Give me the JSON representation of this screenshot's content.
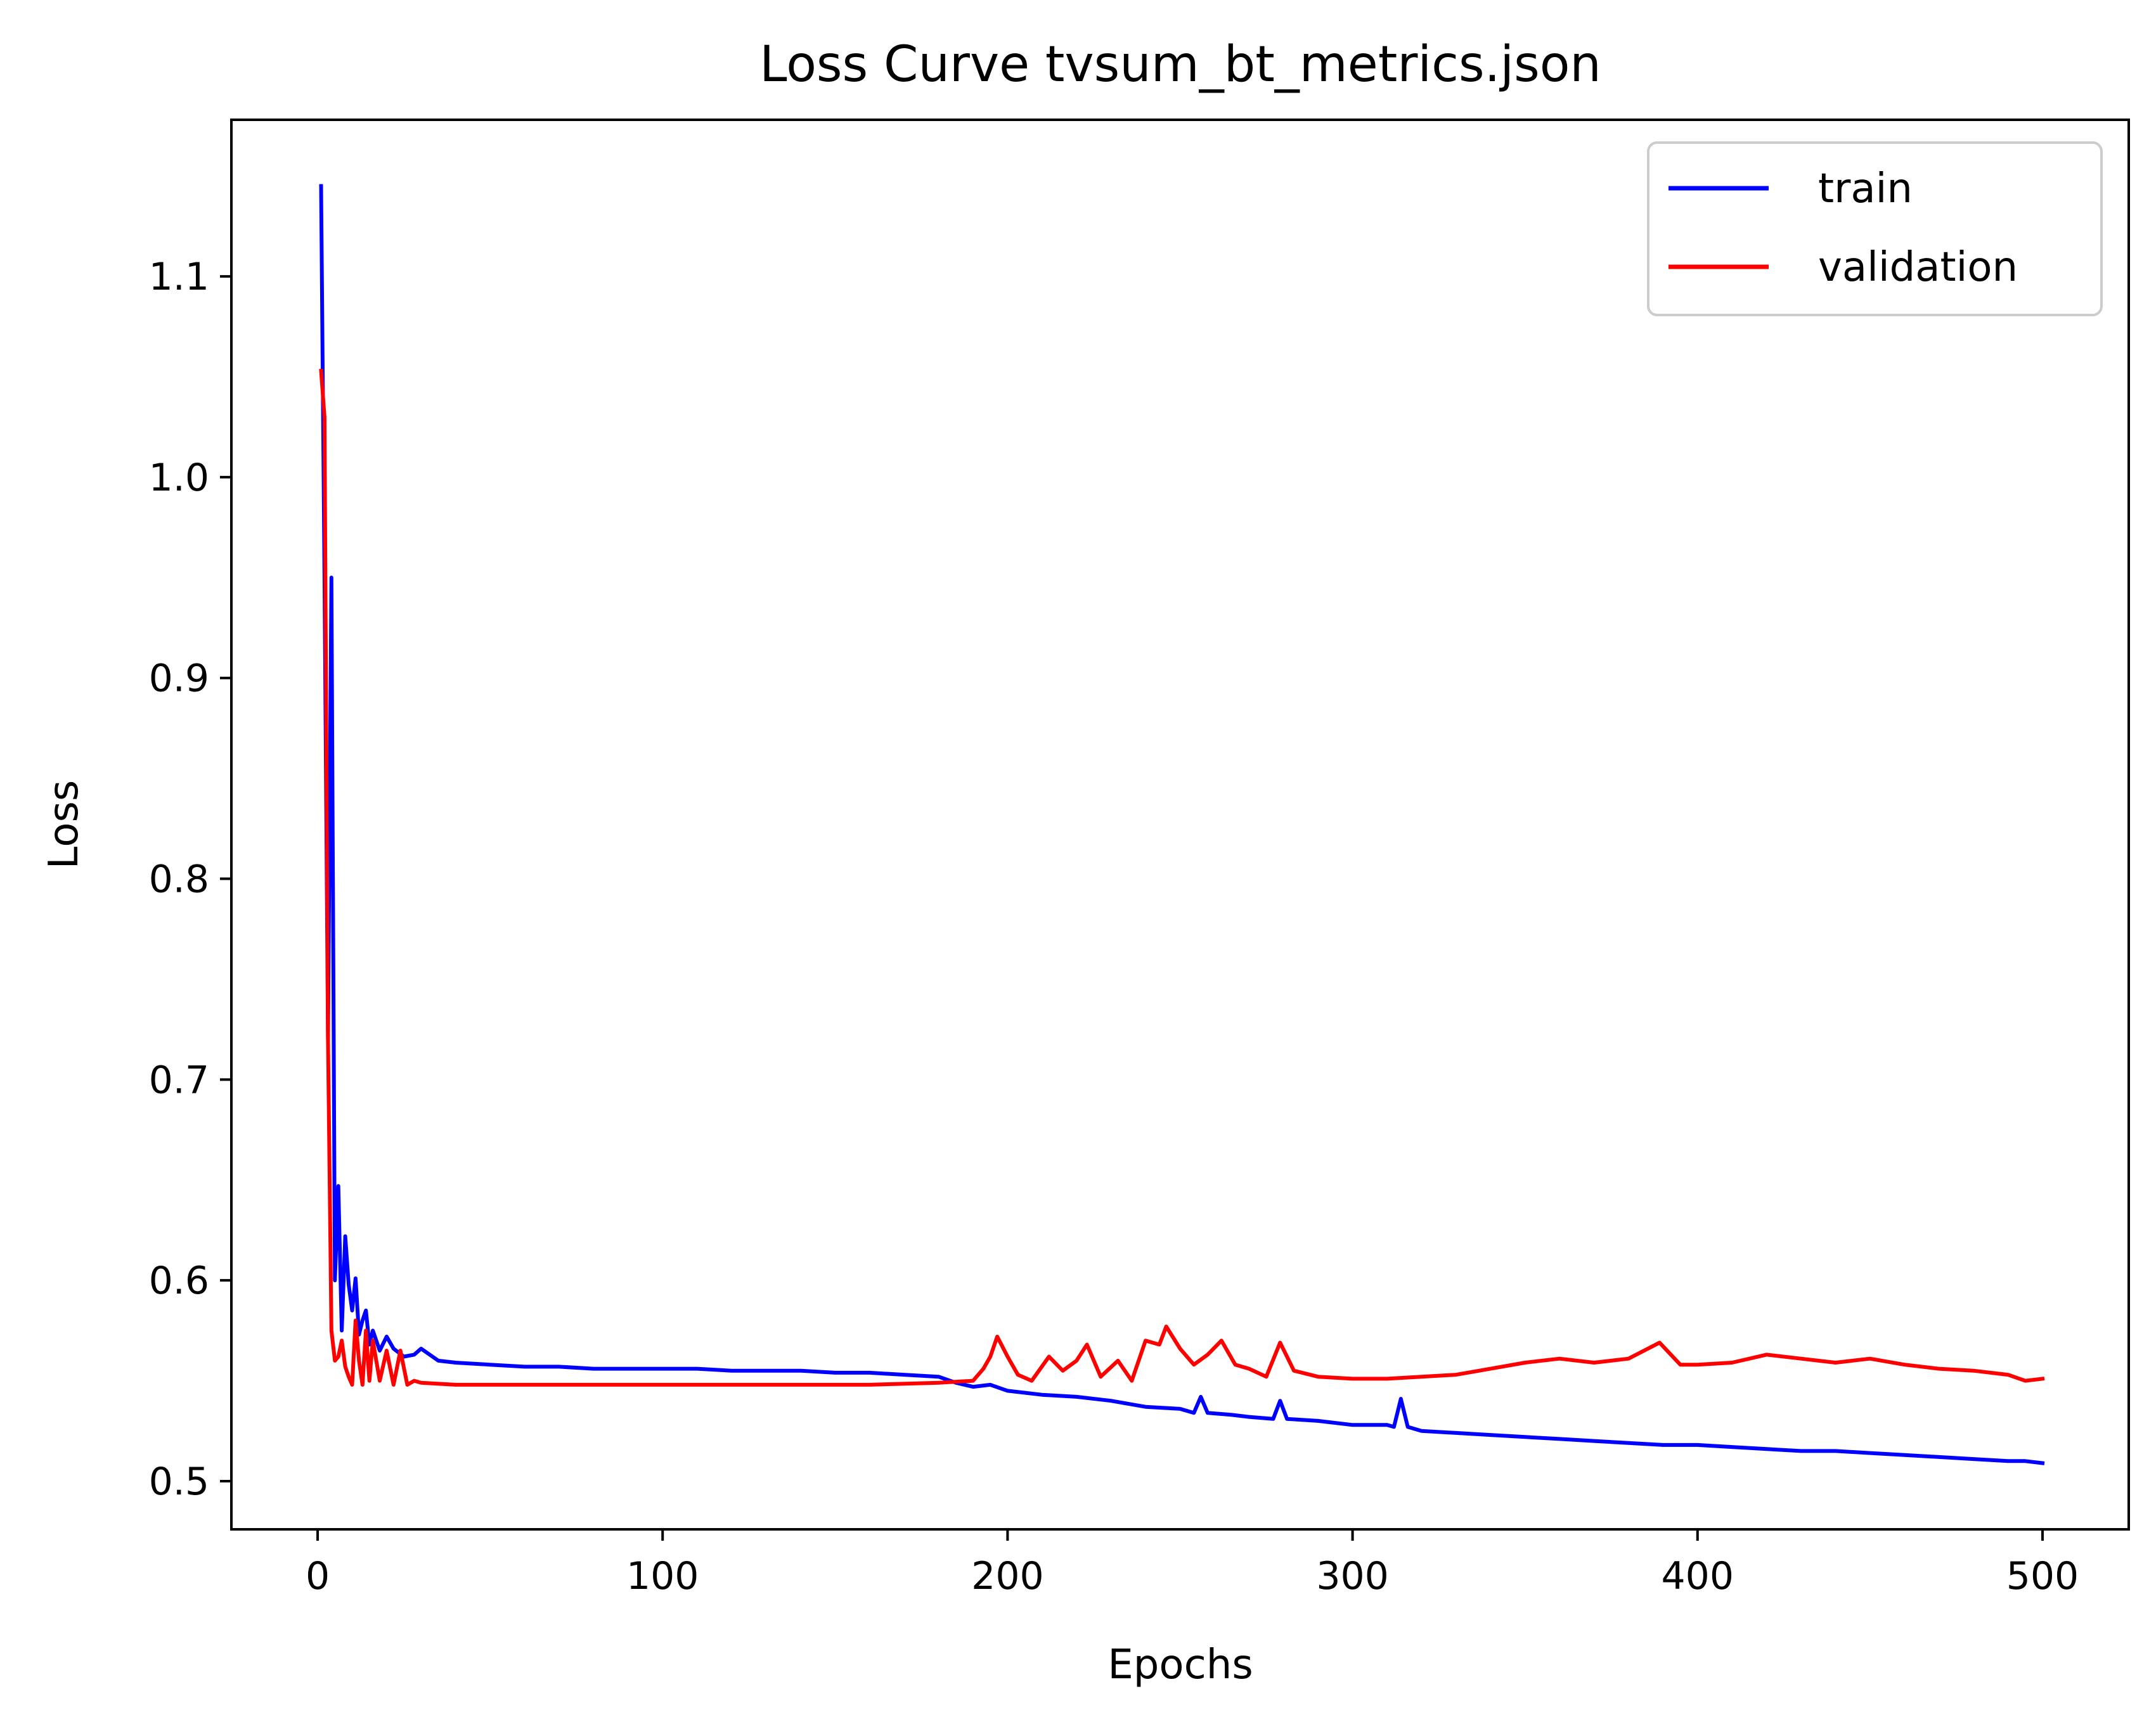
{
  "chart_data": {
    "type": "line",
    "title": "Loss Curve tvsum_bt_metrics.json",
    "xlabel": "Epochs",
    "ylabel": "Loss",
    "xlim": [
      -25,
      525
    ],
    "ylim": [
      0.476,
      1.178
    ],
    "xticks": [
      0,
      100,
      200,
      300,
      400,
      500
    ],
    "yticks": [
      0.5,
      0.6,
      0.7,
      0.8,
      0.9,
      1.0,
      1.1
    ],
    "xtick_labels": [
      "0",
      "100",
      "200",
      "300",
      "400",
      "500"
    ],
    "ytick_labels": [
      "0.5",
      "0.6",
      "0.7",
      "0.8",
      "0.9",
      "1.0",
      "1.1"
    ],
    "grid": false,
    "legend_position": "top-right",
    "series": [
      {
        "name": "train",
        "color": "#0000ff",
        "points": [
          [
            1,
            1.145
          ],
          [
            2,
            0.95
          ],
          [
            3,
            0.72
          ],
          [
            4,
            0.95
          ],
          [
            5,
            0.6
          ],
          [
            6,
            0.647
          ],
          [
            7,
            0.575
          ],
          [
            8,
            0.622
          ],
          [
            9,
            0.598
          ],
          [
            10,
            0.585
          ],
          [
            11,
            0.601
          ],
          [
            12,
            0.573
          ],
          [
            13,
            0.58
          ],
          [
            14,
            0.585
          ],
          [
            15,
            0.568
          ],
          [
            16,
            0.575
          ],
          [
            18,
            0.565
          ],
          [
            20,
            0.572
          ],
          [
            22,
            0.566
          ],
          [
            25,
            0.562
          ],
          [
            28,
            0.563
          ],
          [
            30,
            0.566
          ],
          [
            35,
            0.56
          ],
          [
            40,
            0.559
          ],
          [
            50,
            0.558
          ],
          [
            60,
            0.557
          ],
          [
            70,
            0.557
          ],
          [
            80,
            0.556
          ],
          [
            90,
            0.556
          ],
          [
            100,
            0.556
          ],
          [
            110,
            0.556
          ],
          [
            120,
            0.555
          ],
          [
            130,
            0.555
          ],
          [
            140,
            0.555
          ],
          [
            150,
            0.554
          ],
          [
            160,
            0.554
          ],
          [
            170,
            0.553
          ],
          [
            180,
            0.552
          ],
          [
            185,
            0.549
          ],
          [
            190,
            0.547
          ],
          [
            195,
            0.548
          ],
          [
            200,
            0.545
          ],
          [
            210,
            0.543
          ],
          [
            220,
            0.542
          ],
          [
            230,
            0.54
          ],
          [
            240,
            0.537
          ],
          [
            250,
            0.536
          ],
          [
            254,
            0.534
          ],
          [
            256,
            0.542
          ],
          [
            258,
            0.534
          ],
          [
            265,
            0.533
          ],
          [
            270,
            0.532
          ],
          [
            277,
            0.531
          ],
          [
            279,
            0.54
          ],
          [
            281,
            0.531
          ],
          [
            290,
            0.53
          ],
          [
            300,
            0.528
          ],
          [
            310,
            0.528
          ],
          [
            312,
            0.527
          ],
          [
            314,
            0.541
          ],
          [
            316,
            0.527
          ],
          [
            320,
            0.525
          ],
          [
            330,
            0.524
          ],
          [
            340,
            0.523
          ],
          [
            350,
            0.522
          ],
          [
            360,
            0.521
          ],
          [
            370,
            0.52
          ],
          [
            380,
            0.519
          ],
          [
            390,
            0.518
          ],
          [
            400,
            0.518
          ],
          [
            410,
            0.517
          ],
          [
            420,
            0.516
          ],
          [
            430,
            0.515
          ],
          [
            440,
            0.515
          ],
          [
            450,
            0.514
          ],
          [
            460,
            0.513
          ],
          [
            470,
            0.512
          ],
          [
            480,
            0.511
          ],
          [
            490,
            0.51
          ],
          [
            495,
            0.51
          ],
          [
            500,
            0.509
          ]
        ]
      },
      {
        "name": "validation",
        "color": "#ff0000",
        "points": [
          [
            1,
            1.053
          ],
          [
            2,
            1.03
          ],
          [
            3,
            0.72
          ],
          [
            4,
            0.575
          ],
          [
            5,
            0.56
          ],
          [
            6,
            0.562
          ],
          [
            7,
            0.57
          ],
          [
            8,
            0.557
          ],
          [
            9,
            0.552
          ],
          [
            10,
            0.548
          ],
          [
            11,
            0.58
          ],
          [
            12,
            0.56
          ],
          [
            13,
            0.548
          ],
          [
            14,
            0.575
          ],
          [
            15,
            0.55
          ],
          [
            16,
            0.57
          ],
          [
            18,
            0.55
          ],
          [
            20,
            0.565
          ],
          [
            22,
            0.548
          ],
          [
            24,
            0.565
          ],
          [
            26,
            0.548
          ],
          [
            28,
            0.55
          ],
          [
            30,
            0.549
          ],
          [
            40,
            0.548
          ],
          [
            60,
            0.548
          ],
          [
            80,
            0.548
          ],
          [
            100,
            0.548
          ],
          [
            120,
            0.548
          ],
          [
            140,
            0.548
          ],
          [
            160,
            0.548
          ],
          [
            180,
            0.549
          ],
          [
            190,
            0.55
          ],
          [
            193,
            0.556
          ],
          [
            195,
            0.562
          ],
          [
            197,
            0.572
          ],
          [
            200,
            0.562
          ],
          [
            203,
            0.553
          ],
          [
            207,
            0.55
          ],
          [
            212,
            0.562
          ],
          [
            216,
            0.555
          ],
          [
            220,
            0.56
          ],
          [
            223,
            0.568
          ],
          [
            227,
            0.552
          ],
          [
            232,
            0.56
          ],
          [
            236,
            0.55
          ],
          [
            240,
            0.57
          ],
          [
            244,
            0.568
          ],
          [
            246,
            0.577
          ],
          [
            250,
            0.566
          ],
          [
            254,
            0.558
          ],
          [
            258,
            0.563
          ],
          [
            262,
            0.57
          ],
          [
            266,
            0.558
          ],
          [
            270,
            0.556
          ],
          [
            275,
            0.552
          ],
          [
            279,
            0.569
          ],
          [
            283,
            0.555
          ],
          [
            290,
            0.552
          ],
          [
            300,
            0.551
          ],
          [
            310,
            0.551
          ],
          [
            320,
            0.552
          ],
          [
            330,
            0.553
          ],
          [
            340,
            0.556
          ],
          [
            350,
            0.559
          ],
          [
            360,
            0.561
          ],
          [
            370,
            0.559
          ],
          [
            380,
            0.561
          ],
          [
            389,
            0.569
          ],
          [
            395,
            0.558
          ],
          [
            400,
            0.558
          ],
          [
            410,
            0.559
          ],
          [
            420,
            0.563
          ],
          [
            430,
            0.561
          ],
          [
            440,
            0.559
          ],
          [
            450,
            0.561
          ],
          [
            460,
            0.558
          ],
          [
            470,
            0.556
          ],
          [
            480,
            0.555
          ],
          [
            490,
            0.553
          ],
          [
            495,
            0.55
          ],
          [
            500,
            0.551
          ]
        ]
      }
    ]
  }
}
